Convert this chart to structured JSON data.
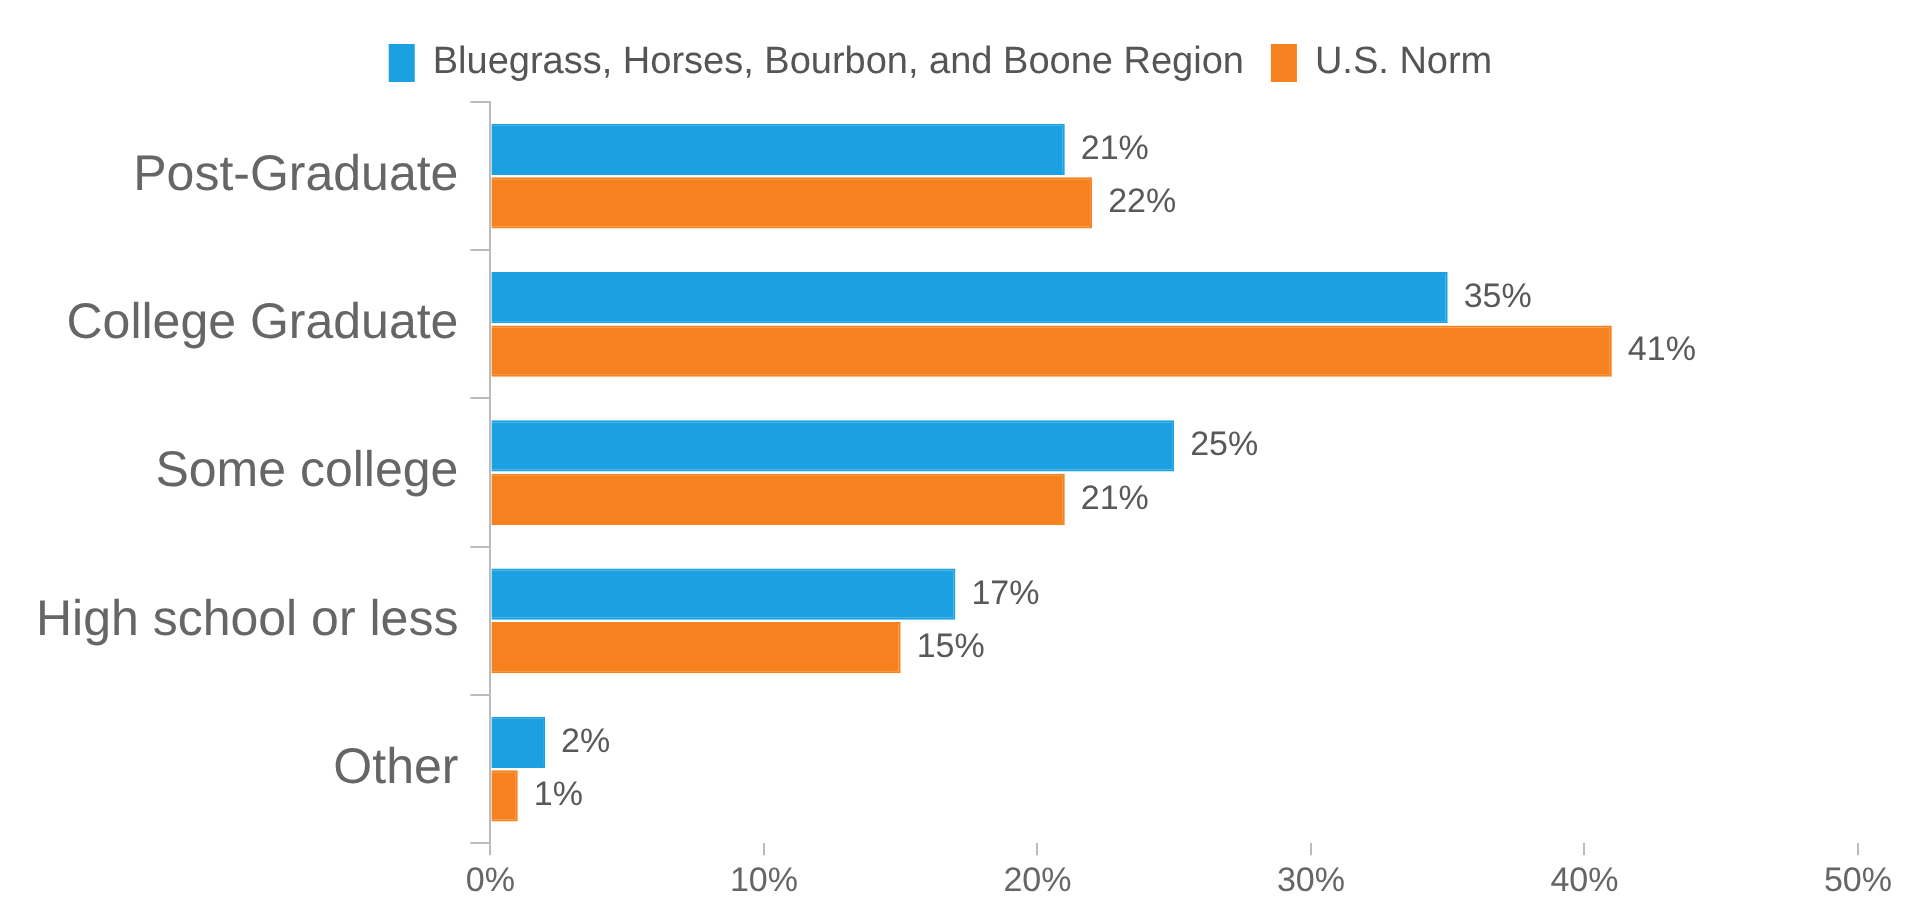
{
  "chart_data": {
    "type": "bar",
    "orientation": "horizontal",
    "categories": [
      "Post-Graduate",
      "College Graduate",
      "Some college",
      "High school or less",
      "Other"
    ],
    "series": [
      {
        "name": "Bluegrass, Horses, Bourbon, and Boone Region",
        "color": "#1ba1e2",
        "values": [
          21,
          35,
          25,
          17,
          2
        ],
        "value_labels": [
          "21%",
          "35%",
          "25%",
          "17%",
          "2%"
        ]
      },
      {
        "name": "U.S. Norm",
        "color": "#f5821f",
        "values": [
          22,
          41,
          21,
          15,
          1
        ],
        "value_labels": [
          "22%",
          "41%",
          "21%",
          "15%",
          "1%"
        ]
      }
    ],
    "xlim": [
      0,
      50
    ],
    "xticks": [
      {
        "value": 0,
        "label": "0%"
      },
      {
        "value": 10,
        "label": "10%"
      },
      {
        "value": 20,
        "label": "20%"
      },
      {
        "value": 30,
        "label": "30%"
      },
      {
        "value": 40,
        "label": "40%"
      },
      {
        "value": 50,
        "label": "50%"
      }
    ],
    "legend": "top",
    "grid": false
  }
}
